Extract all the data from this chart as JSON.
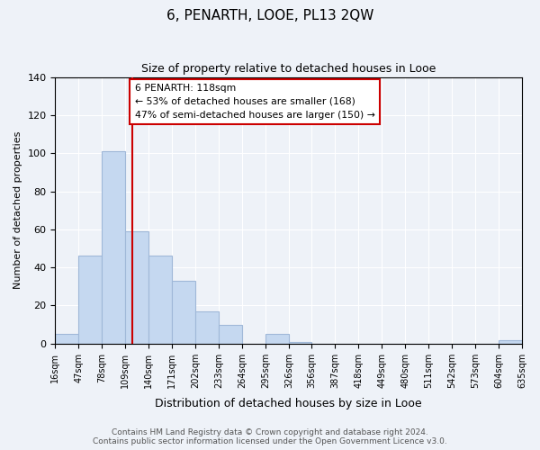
{
  "title": "6, PENARTH, LOOE, PL13 2QW",
  "subtitle": "Size of property relative to detached houses in Looe",
  "xlabel": "Distribution of detached houses by size in Looe",
  "ylabel": "Number of detached properties",
  "bar_color": "#c5d8f0",
  "bar_edge_color": "#a0b8d8",
  "bin_edges": [
    16,
    47,
    78,
    109,
    140,
    171,
    202,
    233,
    264,
    295,
    326,
    356,
    387,
    418,
    449,
    480,
    511,
    542,
    573,
    604,
    635
  ],
  "bin_labels": [
    "16sqm",
    "47sqm",
    "78sqm",
    "109sqm",
    "140sqm",
    "171sqm",
    "202sqm",
    "233sqm",
    "264sqm",
    "295sqm",
    "326sqm",
    "356sqm",
    "387sqm",
    "418sqm",
    "449sqm",
    "480sqm",
    "511sqm",
    "542sqm",
    "573sqm",
    "604sqm",
    "635sqm"
  ],
  "counts": [
    5,
    46,
    101,
    59,
    46,
    33,
    17,
    10,
    0,
    5,
    1,
    0,
    0,
    0,
    0,
    0,
    0,
    0,
    0,
    2
  ],
  "ylim": [
    0,
    140
  ],
  "yticks": [
    0,
    20,
    40,
    60,
    80,
    100,
    120,
    140
  ],
  "vline_x": 118,
  "vline_color": "#cc0000",
  "annotation_title": "6 PENARTH: 118sqm",
  "annotation_line1": "← 53% of detached houses are smaller (168)",
  "annotation_line2": "47% of semi-detached houses are larger (150) →",
  "footer_line1": "Contains HM Land Registry data © Crown copyright and database right 2024.",
  "footer_line2": "Contains public sector information licensed under the Open Government Licence v3.0.",
  "background_color": "#eef2f8",
  "plot_bg_color": "#eef2f8"
}
